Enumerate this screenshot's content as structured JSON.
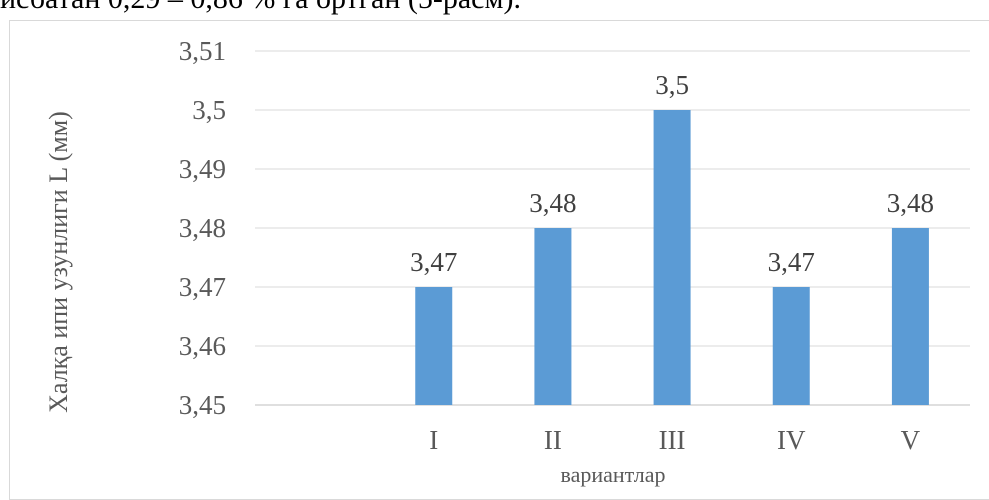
{
  "top_text": "исбатан 0,29 – 0,86 % га ортган (5-расм).",
  "chart_data": {
    "type": "bar",
    "categories": [
      "",
      "I",
      "II",
      "III",
      "IV",
      "V"
    ],
    "values": [
      null,
      3.47,
      3.48,
      3.5,
      3.47,
      3.48
    ],
    "data_labels": [
      "",
      "3,47",
      "3,48",
      "3,5",
      "3,47",
      "3,48"
    ],
    "title": "",
    "xlabel": "вариантлар",
    "ylabel": "Халқа ипи узунлиги L (мм)",
    "ylim": [
      3.45,
      3.51
    ],
    "yticks": [
      "3,45",
      "3,46",
      "3,47",
      "3,48",
      "3,49",
      "3,5",
      "3,51"
    ],
    "bar_color": "#5b9bd5",
    "grid": true,
    "legend": "none"
  }
}
